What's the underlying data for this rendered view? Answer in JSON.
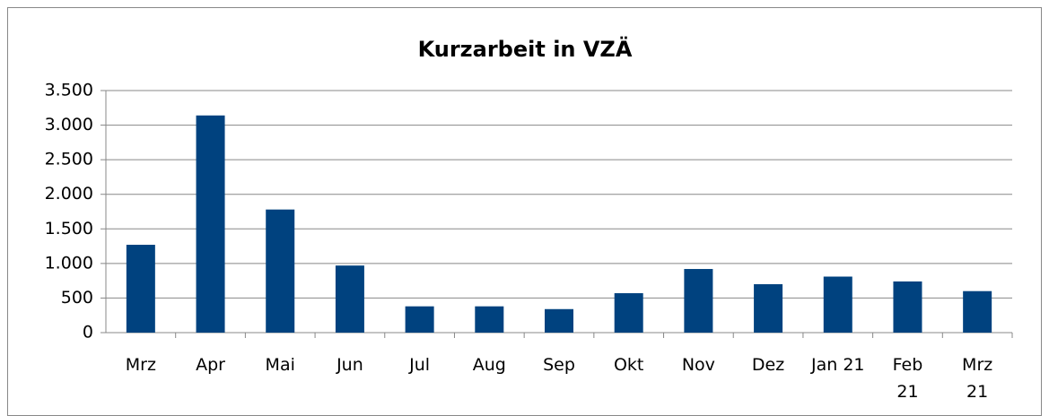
{
  "chart_data": {
    "type": "bar",
    "title": "Kurzarbeit in VZÄ",
    "categories": [
      "Mrz",
      "Apr",
      "Mai",
      "Jun",
      "Jul",
      "Aug",
      "Sep",
      "Okt",
      "Nov",
      "Dez",
      "Jan 21",
      "Feb 21",
      "Mrz 21"
    ],
    "values": [
      1270,
      3140,
      1780,
      970,
      380,
      380,
      340,
      570,
      920,
      700,
      810,
      740,
      600
    ],
    "color": "#00427f",
    "ylim": [
      0,
      3500
    ],
    "yticks": [
      0,
      500,
      {
        "value": 1000,
        "label": "1.000"
      },
      {
        "value": 1500,
        "label": "1.500"
      },
      {
        "value": 2000,
        "label": "2.000"
      },
      {
        "value": 2500,
        "label": "2.500"
      },
      {
        "value": 3000,
        "label": "3.000"
      },
      {
        "value": 3500,
        "label": "3.500"
      }
    ],
    "grid": true
  }
}
